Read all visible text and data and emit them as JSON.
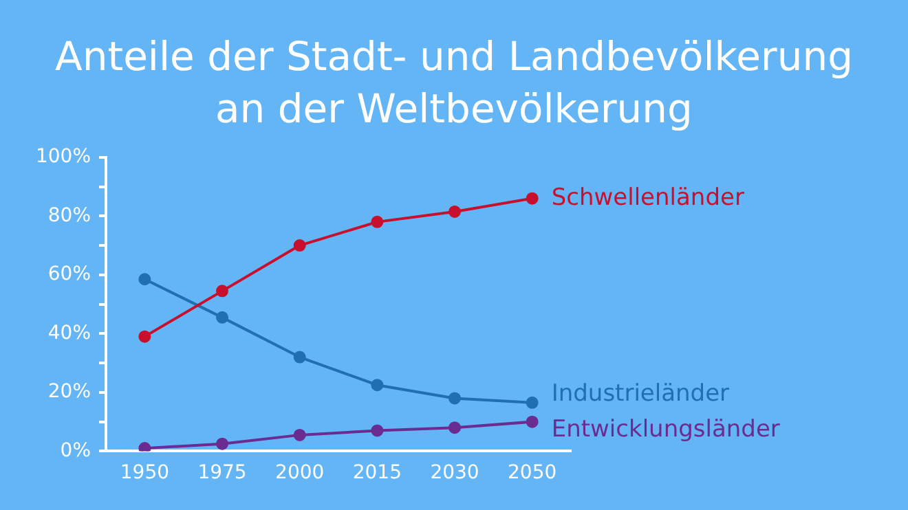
{
  "chart_data": {
    "type": "line",
    "title": "Anteile der Stadt- und Landbevölkerung an der Weltbevölkerung",
    "categories": [
      "1950",
      "1975",
      "2000",
      "2015",
      "2030",
      "2050"
    ],
    "series": [
      {
        "name": "Schwellenländer",
        "color": "#c8102e",
        "values": [
          39,
          54.5,
          70,
          78,
          81.5,
          86
        ]
      },
      {
        "name": "Industrieländer",
        "color": "#1f6fb2",
        "values": [
          58.5,
          45.5,
          32,
          22.5,
          18,
          16.5
        ]
      },
      {
        "name": "Entwicklungsländer",
        "color": "#6a2c91",
        "values": [
          1,
          2.5,
          5.5,
          7,
          8,
          10
        ]
      }
    ],
    "ylim": [
      0,
      100
    ],
    "yticks": [
      {
        "value": 0,
        "label": "0%"
      },
      {
        "value": 10,
        "label": null
      },
      {
        "value": 20,
        "label": "20%"
      },
      {
        "value": 30,
        "label": null
      },
      {
        "value": 40,
        "label": "40%"
      },
      {
        "value": 50,
        "label": null
      },
      {
        "value": 60,
        "label": "60%"
      },
      {
        "value": 70,
        "label": null
      },
      {
        "value": 80,
        "label": "80%"
      },
      {
        "value": 90,
        "label": null
      },
      {
        "value": 100,
        "label": "100%"
      }
    ],
    "grid": false,
    "legend": false,
    "marker": "circle",
    "line_style": "solid"
  }
}
